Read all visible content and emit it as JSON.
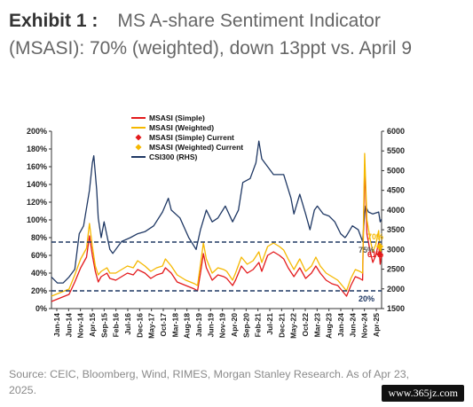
{
  "header": {
    "label": "Exhibit 1 :",
    "title": "MS A-share Sentiment Indicator (MSASI): 70% (weighted), down 13ppt vs. April 9"
  },
  "source": "Source: CEIC, Bloomberg, Wind, RIMES, Morgan Stanley Research. As of Apr 23, 2025.",
  "watermark": "www.365jz.com",
  "chart_data": {
    "type": "line",
    "legend_position": "top-center",
    "grid": false,
    "colors": {
      "simple": "#e31a1c",
      "weighted": "#f5b800",
      "csi300": "#1f3864",
      "reference": "#1f3864",
      "label_70": "#f5b800",
      "label_61": "#e31a1c",
      "label_75": "#555555",
      "label_20": "#1f3864"
    },
    "x_tick_labels": [
      "Jan-14",
      "Jun-14",
      "Nov-14",
      "Apr-15",
      "Sep-15",
      "Feb-16",
      "Jul-16",
      "Dec-16",
      "May-17",
      "Oct-17",
      "Mar-18",
      "Aug-18",
      "Jan-19",
      "Jun-19",
      "Nov-19",
      "Apr-20",
      "Sep-20",
      "Feb-21",
      "Jul-21",
      "Dec-21",
      "May-22",
      "Oct-22",
      "Mar-23",
      "Aug-23",
      "Jan-24",
      "Jun-24",
      "Nov-24",
      "Apr-25"
    ],
    "y_left": {
      "min": 0,
      "max": 200,
      "step": 20,
      "tick_labels": [
        "0%",
        "20%",
        "40%",
        "60%",
        "80%",
        "100%",
        "120%",
        "140%",
        "160%",
        "180%",
        "200%"
      ]
    },
    "y_right": {
      "min": 1500,
      "max": 6000,
      "step": 500,
      "tick_labels": [
        "1500",
        "2000",
        "2500",
        "3000",
        "3500",
        "4000",
        "4500",
        "5000",
        "5500",
        "6000"
      ]
    },
    "reference_lines": [
      {
        "value": 75,
        "label": "75%"
      },
      {
        "value": 20,
        "label": "20%"
      }
    ],
    "annotations": [
      {
        "text": "70%",
        "series": "weighted"
      },
      {
        "text": "61%",
        "series": "simple"
      }
    ],
    "series": [
      {
        "name": "MSASI (Simple)",
        "kind": "line",
        "axis": "left",
        "points": [
          [
            2014.0,
            8
          ],
          [
            2014.3,
            12
          ],
          [
            2014.6,
            16
          ],
          [
            2014.8,
            30
          ],
          [
            2015.0,
            46
          ],
          [
            2015.2,
            58
          ],
          [
            2015.3,
            82
          ],
          [
            2015.4,
            60
          ],
          [
            2015.5,
            42
          ],
          [
            2015.6,
            30
          ],
          [
            2015.7,
            36
          ],
          [
            2015.9,
            40
          ],
          [
            2016.0,
            34
          ],
          [
            2016.2,
            32
          ],
          [
            2016.4,
            36
          ],
          [
            2016.6,
            40
          ],
          [
            2016.8,
            38
          ],
          [
            2016.95,
            44
          ],
          [
            2017.2,
            40
          ],
          [
            2017.4,
            34
          ],
          [
            2017.6,
            38
          ],
          [
            2017.8,
            40
          ],
          [
            2017.9,
            46
          ],
          [
            2018.1,
            40
          ],
          [
            2018.3,
            30
          ],
          [
            2018.6,
            26
          ],
          [
            2018.9,
            22
          ],
          [
            2019.0,
            20
          ],
          [
            2019.1,
            40
          ],
          [
            2019.2,
            62
          ],
          [
            2019.3,
            46
          ],
          [
            2019.5,
            32
          ],
          [
            2019.7,
            38
          ],
          [
            2019.9,
            36
          ],
          [
            2020.0,
            34
          ],
          [
            2020.2,
            26
          ],
          [
            2020.3,
            32
          ],
          [
            2020.5,
            48
          ],
          [
            2020.7,
            40
          ],
          [
            2020.9,
            44
          ],
          [
            2021.1,
            52
          ],
          [
            2021.2,
            42
          ],
          [
            2021.4,
            60
          ],
          [
            2021.6,
            64
          ],
          [
            2021.8,
            60
          ],
          [
            2021.95,
            56
          ],
          [
            2022.1,
            46
          ],
          [
            2022.3,
            36
          ],
          [
            2022.5,
            46
          ],
          [
            2022.7,
            34
          ],
          [
            2022.9,
            40
          ],
          [
            2023.05,
            48
          ],
          [
            2023.2,
            40
          ],
          [
            2023.4,
            32
          ],
          [
            2023.6,
            28
          ],
          [
            2023.8,
            26
          ],
          [
            2024.0,
            18
          ],
          [
            2024.1,
            14
          ],
          [
            2024.25,
            26
          ],
          [
            2024.4,
            36
          ],
          [
            2024.55,
            34
          ],
          [
            2024.65,
            32
          ],
          [
            2024.72,
            162
          ],
          [
            2024.8,
            84
          ],
          [
            2024.9,
            66
          ],
          [
            2025.0,
            52
          ],
          [
            2025.1,
            60
          ],
          [
            2025.2,
            74
          ],
          [
            2025.25,
            50
          ],
          [
            2025.3,
            61
          ]
        ]
      },
      {
        "name": "MSASI (Weighted)",
        "kind": "line",
        "axis": "left",
        "points": [
          [
            2014.0,
            14
          ],
          [
            2014.3,
            18
          ],
          [
            2014.6,
            22
          ],
          [
            2014.8,
            38
          ],
          [
            2015.0,
            56
          ],
          [
            2015.2,
            68
          ],
          [
            2015.3,
            96
          ],
          [
            2015.4,
            70
          ],
          [
            2015.5,
            48
          ],
          [
            2015.6,
            38
          ],
          [
            2015.7,
            42
          ],
          [
            2015.9,
            46
          ],
          [
            2016.0,
            40
          ],
          [
            2016.2,
            40
          ],
          [
            2016.4,
            44
          ],
          [
            2016.6,
            48
          ],
          [
            2016.8,
            46
          ],
          [
            2016.95,
            54
          ],
          [
            2017.2,
            48
          ],
          [
            2017.4,
            42
          ],
          [
            2017.6,
            46
          ],
          [
            2017.8,
            48
          ],
          [
            2017.9,
            56
          ],
          [
            2018.1,
            48
          ],
          [
            2018.3,
            38
          ],
          [
            2018.6,
            32
          ],
          [
            2018.9,
            28
          ],
          [
            2019.0,
            26
          ],
          [
            2019.1,
            50
          ],
          [
            2019.2,
            74
          ],
          [
            2019.3,
            56
          ],
          [
            2019.5,
            40
          ],
          [
            2019.7,
            46
          ],
          [
            2019.9,
            44
          ],
          [
            2020.0,
            42
          ],
          [
            2020.2,
            32
          ],
          [
            2020.3,
            40
          ],
          [
            2020.5,
            58
          ],
          [
            2020.7,
            50
          ],
          [
            2020.9,
            54
          ],
          [
            2021.1,
            64
          ],
          [
            2021.2,
            52
          ],
          [
            2021.4,
            70
          ],
          [
            2021.6,
            74
          ],
          [
            2021.8,
            70
          ],
          [
            2021.95,
            66
          ],
          [
            2022.1,
            56
          ],
          [
            2022.3,
            44
          ],
          [
            2022.5,
            56
          ],
          [
            2022.7,
            42
          ],
          [
            2022.9,
            48
          ],
          [
            2023.05,
            58
          ],
          [
            2023.2,
            48
          ],
          [
            2023.4,
            40
          ],
          [
            2023.6,
            36
          ],
          [
            2023.8,
            32
          ],
          [
            2024.0,
            24
          ],
          [
            2024.1,
            20
          ],
          [
            2024.25,
            34
          ],
          [
            2024.4,
            44
          ],
          [
            2024.55,
            42
          ],
          [
            2024.65,
            40
          ],
          [
            2024.72,
            175
          ],
          [
            2024.8,
            100
          ],
          [
            2024.9,
            80
          ],
          [
            2025.0,
            64
          ],
          [
            2025.1,
            72
          ],
          [
            2025.2,
            88
          ],
          [
            2025.25,
            62
          ],
          [
            2025.3,
            70
          ]
        ]
      },
      {
        "name": "MSASI (Simple) Current",
        "kind": "marker",
        "axis": "left",
        "points": [
          [
            2025.3,
            61
          ]
        ]
      },
      {
        "name": "MSASI (Weighted) Current",
        "kind": "marker",
        "axis": "left",
        "points": [
          [
            2025.3,
            70
          ]
        ]
      },
      {
        "name": "CSI300 (RHS)",
        "kind": "line",
        "axis": "right",
        "points": [
          [
            2014.0,
            2300
          ],
          [
            2014.2,
            2150
          ],
          [
            2014.4,
            2150
          ],
          [
            2014.6,
            2300
          ],
          [
            2014.8,
            2500
          ],
          [
            2014.95,
            3400
          ],
          [
            2015.1,
            3600
          ],
          [
            2015.3,
            4500
          ],
          [
            2015.4,
            5200
          ],
          [
            2015.45,
            5380
          ],
          [
            2015.55,
            4500
          ],
          [
            2015.6,
            3800
          ],
          [
            2015.7,
            3300
          ],
          [
            2015.8,
            3700
          ],
          [
            2016.0,
            3000
          ],
          [
            2016.1,
            2900
          ],
          [
            2016.4,
            3200
          ],
          [
            2016.7,
            3300
          ],
          [
            2016.95,
            3400
          ],
          [
            2017.2,
            3450
          ],
          [
            2017.5,
            3600
          ],
          [
            2017.8,
            3950
          ],
          [
            2018.0,
            4300
          ],
          [
            2018.1,
            4000
          ],
          [
            2018.4,
            3800
          ],
          [
            2018.7,
            3300
          ],
          [
            2018.95,
            3000
          ],
          [
            2019.1,
            3500
          ],
          [
            2019.3,
            4000
          ],
          [
            2019.5,
            3700
          ],
          [
            2019.7,
            3800
          ],
          [
            2019.95,
            4100
          ],
          [
            2020.2,
            3700
          ],
          [
            2020.4,
            4000
          ],
          [
            2020.55,
            4700
          ],
          [
            2020.8,
            4800
          ],
          [
            2021.0,
            5200
          ],
          [
            2021.1,
            5750
          ],
          [
            2021.2,
            5300
          ],
          [
            2021.4,
            5100
          ],
          [
            2021.6,
            4900
          ],
          [
            2021.8,
            4900
          ],
          [
            2021.95,
            4900
          ],
          [
            2022.2,
            4300
          ],
          [
            2022.3,
            3900
          ],
          [
            2022.5,
            4400
          ],
          [
            2022.7,
            3900
          ],
          [
            2022.85,
            3500
          ],
          [
            2023.0,
            4000
          ],
          [
            2023.1,
            4100
          ],
          [
            2023.3,
            3900
          ],
          [
            2023.5,
            3850
          ],
          [
            2023.7,
            3700
          ],
          [
            2023.9,
            3400
          ],
          [
            2024.05,
            3300
          ],
          [
            2024.1,
            3350
          ],
          [
            2024.3,
            3600
          ],
          [
            2024.5,
            3500
          ],
          [
            2024.65,
            3200
          ],
          [
            2024.72,
            3900
          ],
          [
            2024.75,
            4100
          ],
          [
            2024.85,
            3950
          ],
          [
            2025.0,
            3900
          ],
          [
            2025.2,
            3950
          ],
          [
            2025.25,
            3700
          ],
          [
            2025.3,
            3770
          ]
        ]
      }
    ]
  }
}
